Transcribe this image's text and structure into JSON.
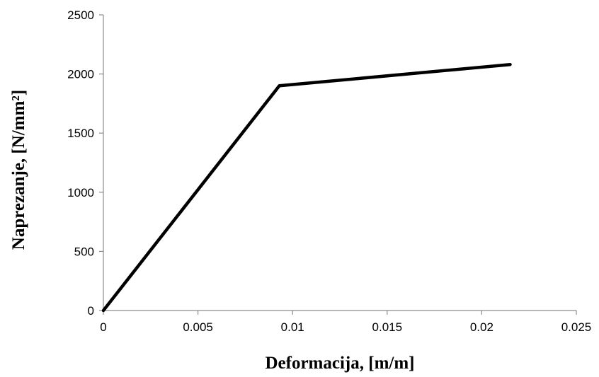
{
  "chart_data": {
    "type": "line",
    "title": "",
    "xlabel": "Deformacija, [m/m]",
    "ylabel": "Naprezanje, [N/mm²]",
    "xlim": [
      0,
      0.025
    ],
    "ylim": [
      0,
      2500
    ],
    "x_ticks": [
      0,
      0.005,
      0.01,
      0.015,
      0.02,
      0.025
    ],
    "x_tick_labels": [
      "0",
      "0.005",
      "0.01",
      "0.015",
      "0.02",
      "0.025"
    ],
    "y_ticks": [
      0,
      500,
      1000,
      1500,
      2000,
      2500
    ],
    "y_tick_labels": [
      "0",
      "500",
      "1000",
      "1500",
      "2000",
      "2500"
    ],
    "grid": false,
    "legend": "none",
    "series": [
      {
        "color": "#000000",
        "x": [
          0,
          0.0093,
          0.0215
        ],
        "y": [
          0,
          1900,
          2080
        ]
      }
    ]
  }
}
